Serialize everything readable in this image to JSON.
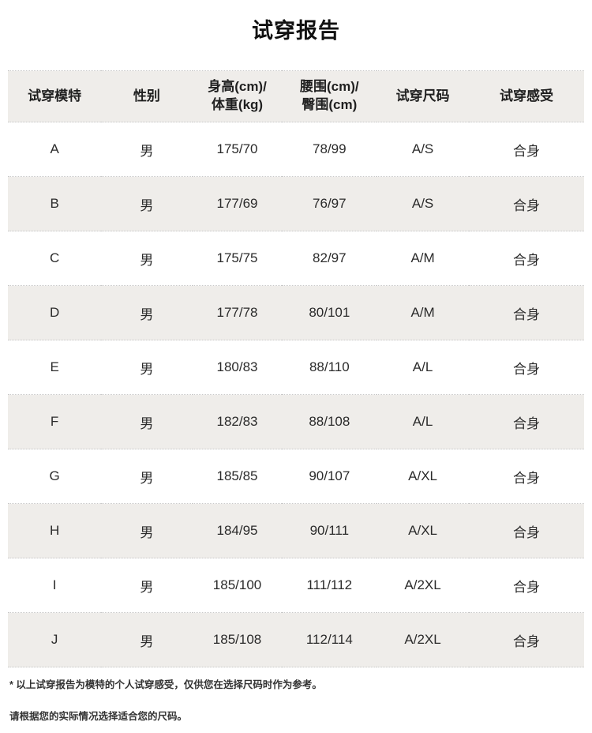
{
  "title": "试穿报告",
  "table": {
    "headers": [
      "试穿模特",
      "性别",
      "身高(cm)/\n体重(kg)",
      "腰围(cm)/\n臀围(cm)",
      "试穿尺码",
      "试穿感受"
    ],
    "col_widths": [
      "16.2%",
      "15.8%",
      "15.6%",
      "16.4%",
      "16%",
      "20%"
    ],
    "rows": [
      [
        "A",
        "男",
        "175/70",
        "78/99",
        "A/S",
        "合身"
      ],
      [
        "B",
        "男",
        "177/69",
        "76/97",
        "A/S",
        "合身"
      ],
      [
        "C",
        "男",
        "175/75",
        "82/97",
        "A/M",
        "合身"
      ],
      [
        "D",
        "男",
        "177/78",
        "80/101",
        "A/M",
        "合身"
      ],
      [
        "E",
        "男",
        "180/83",
        "88/110",
        "A/L",
        "合身"
      ],
      [
        "F",
        "男",
        "182/83",
        "88/108",
        "A/L",
        "合身"
      ],
      [
        "G",
        "男",
        "185/85",
        "90/107",
        "A/XL",
        "合身"
      ],
      [
        "H",
        "男",
        "184/95",
        "90/111",
        "A/XL",
        "合身"
      ],
      [
        "I",
        "男",
        "185/100",
        "111/112",
        "A/2XL",
        "合身"
      ],
      [
        "J",
        "男",
        "185/108",
        "112/114",
        "A/2XL",
        "合身"
      ]
    ]
  },
  "notes": {
    "line1": "* 以上试穿报告为模特的个人试穿感受，仅供您在选择尺码时作为参考。",
    "line2": "请根据您的实际情况选择适合您的尺码。"
  },
  "colors": {
    "row_alt_bg": "#efedea",
    "border_dotted": "#c9c9c9",
    "title_text": "#111111",
    "cell_text": "#2b2b2b",
    "note_text": "#333333"
  }
}
